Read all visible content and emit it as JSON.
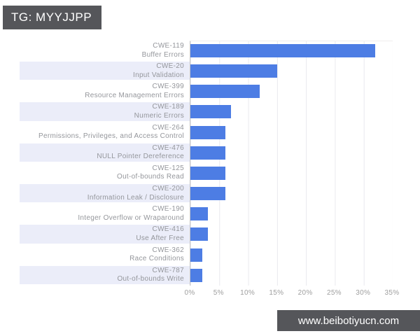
{
  "badge": {
    "text": "TG: MYYJJPP"
  },
  "watermark": {
    "text": "www.beibotiyucn.com"
  },
  "colors": {
    "bar": "#4d7de4",
    "stripe": "#ebedf9",
    "badge_bg": "#55565a",
    "grid": "#e9e9ee",
    "axis": "#c6c6c6",
    "label_text": "#94969b",
    "tick_text": "#9e9e9e"
  },
  "chart_data": {
    "type": "bar",
    "orientation": "horizontal",
    "title": "",
    "xlabel": "",
    "ylabel": "",
    "xlim": [
      0,
      35
    ],
    "x_ticks": [
      "0%",
      "5%",
      "10%",
      "15%",
      "20%",
      "25%",
      "30%",
      "35%"
    ],
    "grid": true,
    "row_striping": "alternate",
    "categories": [
      {
        "code": "CWE-119",
        "name": "Buffer Errors"
      },
      {
        "code": "CWE-20",
        "name": "Input Validation"
      },
      {
        "code": "CWE-399",
        "name": "Resource Management Errors"
      },
      {
        "code": "CWE-189",
        "name": "Numeric Errors"
      },
      {
        "code": "CWE-264",
        "name": "Permissions, Privileges, and Access Control"
      },
      {
        "code": "CWE-476",
        "name": "NULL Pointer Dereference"
      },
      {
        "code": "CWE-125",
        "name": "Out-of-bounds Read"
      },
      {
        "code": "CWE-200",
        "name": "Information Leak / Disclosure"
      },
      {
        "code": "CWE-190",
        "name": "Integer Overflow or Wraparound"
      },
      {
        "code": "CWE-416",
        "name": "Use After Free"
      },
      {
        "code": "CWE-362",
        "name": "Race Conditions"
      },
      {
        "code": "CWE-787",
        "name": "Out-of-bounds Write"
      }
    ],
    "values": [
      32,
      15,
      12,
      7,
      6,
      6,
      6,
      6,
      3,
      3,
      2,
      2
    ],
    "values_unit": "percent"
  }
}
